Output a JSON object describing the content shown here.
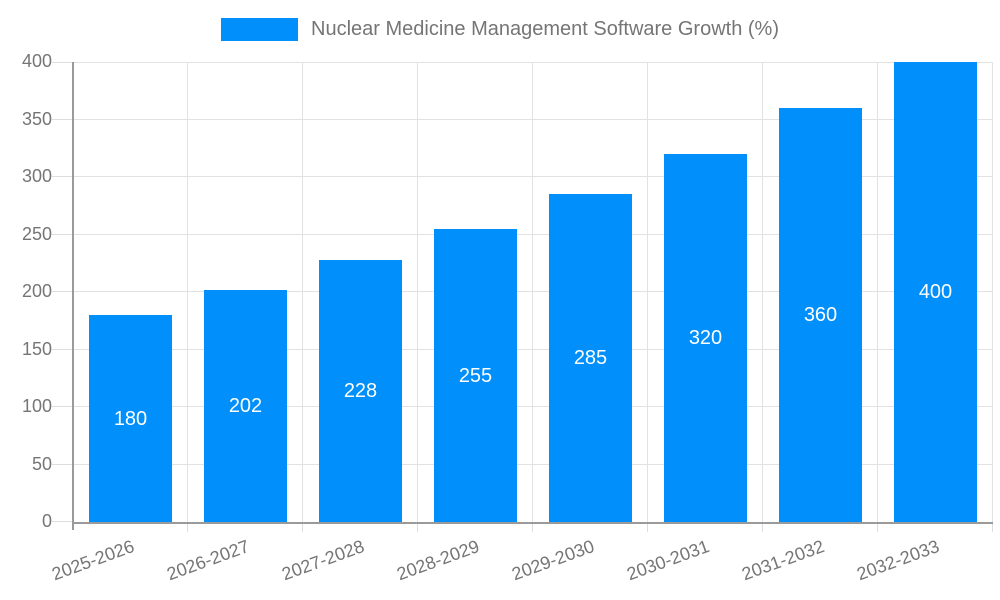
{
  "chart_data": {
    "type": "bar",
    "title": "",
    "legend_label": "Nuclear Medicine Management Software Growth (%)",
    "legend_position": "top",
    "categories": [
      "2025-2026",
      "2026-2027",
      "2027-2028",
      "2028-2029",
      "2029-2030",
      "2030-2031",
      "2031-2032",
      "2032-2033"
    ],
    "values": [
      180,
      202,
      228,
      255,
      285,
      320,
      360,
      400
    ],
    "value_labels": [
      "180",
      "202",
      "228",
      "255",
      "285",
      "320",
      "360",
      "400"
    ],
    "xlabel": "",
    "ylabel": "",
    "ylim": [
      0,
      400
    ],
    "ytick_step": 50,
    "yticks": [
      0,
      50,
      100,
      150,
      200,
      250,
      300,
      350,
      400
    ],
    "grid": true,
    "x_label_rotation_deg": -20,
    "value_labels_shown": true,
    "colors": {
      "bar": "#008FFB",
      "axis_line": "#9a9a9a",
      "gridline": "#e2e2e2",
      "tick": "#dddddd",
      "axis_text": "#757575",
      "legend_text": "#757575",
      "value_text": "#ffffff",
      "background": "#ffffff"
    }
  }
}
